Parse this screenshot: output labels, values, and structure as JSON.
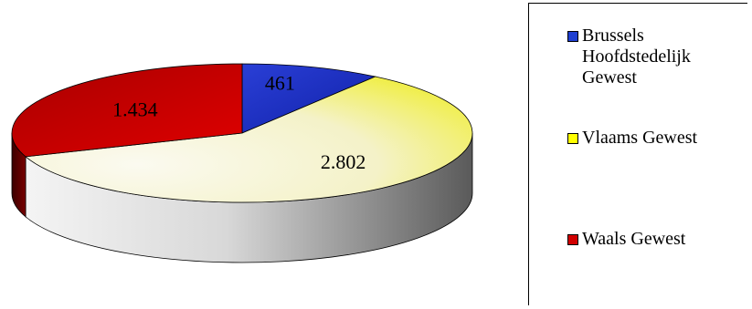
{
  "chart_data": {
    "type": "pie",
    "style": "3d",
    "categories": [
      "Brussels Hoofdstedelijk Gewest",
      "Vlaams Gewest",
      "Waals Gewest"
    ],
    "values": [
      461,
      2802,
      1434
    ],
    "value_labels": [
      "461",
      "2.802",
      "1.434"
    ],
    "colors": [
      "#1f3fd0",
      "#f6f4c4",
      "#d10000"
    ],
    "legend_placement": "right"
  },
  "legend": {
    "items": [
      {
        "label": "Brussels\nHoofdstedelijk\nGewest",
        "color": "#1f3fd0"
      },
      {
        "label": "Vlaams Gewest",
        "color": "#ffff00"
      },
      {
        "label": "Waals Gewest",
        "color": "#d10000"
      }
    ]
  }
}
